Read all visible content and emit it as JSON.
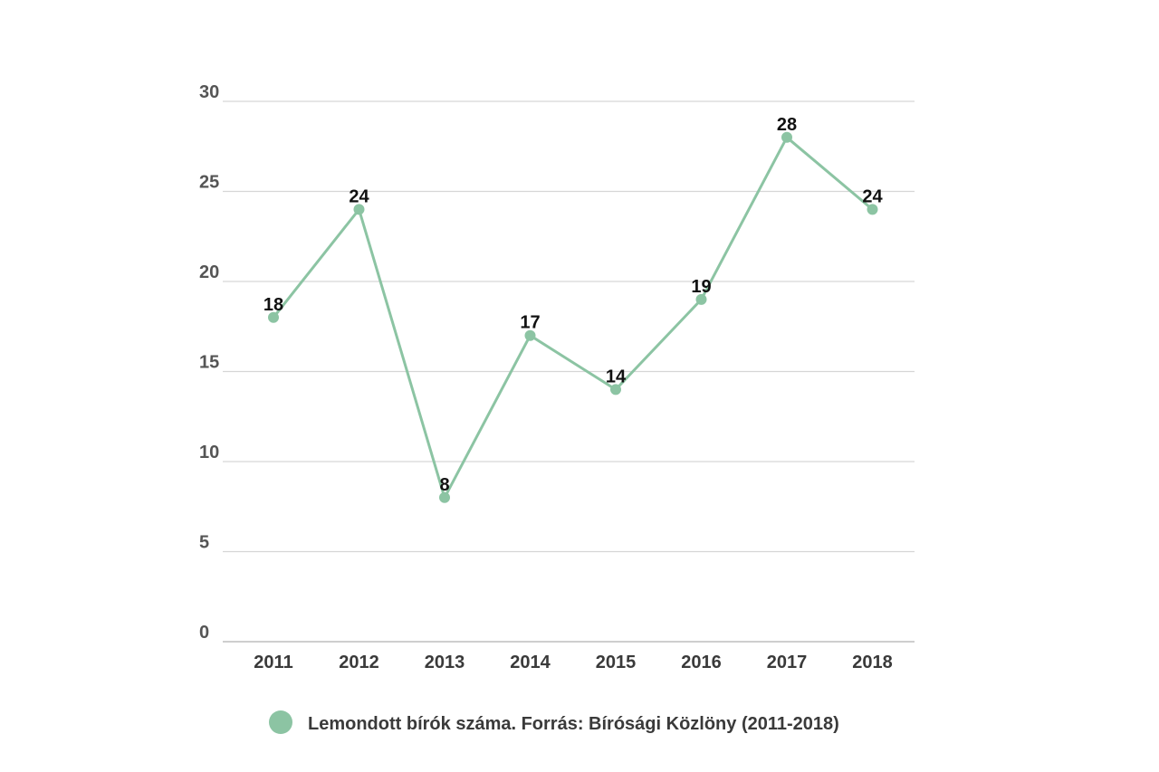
{
  "chart_data": {
    "type": "line",
    "categories": [
      "2011",
      "2012",
      "2013",
      "2014",
      "2015",
      "2016",
      "2017",
      "2018"
    ],
    "series": [
      {
        "name": "Lemondott bírók száma. Forrás: Bírósági Közlöny (2011-2018)",
        "values": [
          18,
          24,
          8,
          17,
          14,
          19,
          28,
          24
        ],
        "color": "#8cc4a3"
      }
    ],
    "ylim": [
      0,
      30
    ],
    "yticks": [
      0,
      5,
      10,
      15,
      20,
      25,
      30
    ],
    "grid": true,
    "data_labels": true,
    "legend": {
      "placement": "bottom",
      "label": "Lemondott bírók száma. Forrás: Bírósági Közlöny (2011-2018)"
    }
  }
}
